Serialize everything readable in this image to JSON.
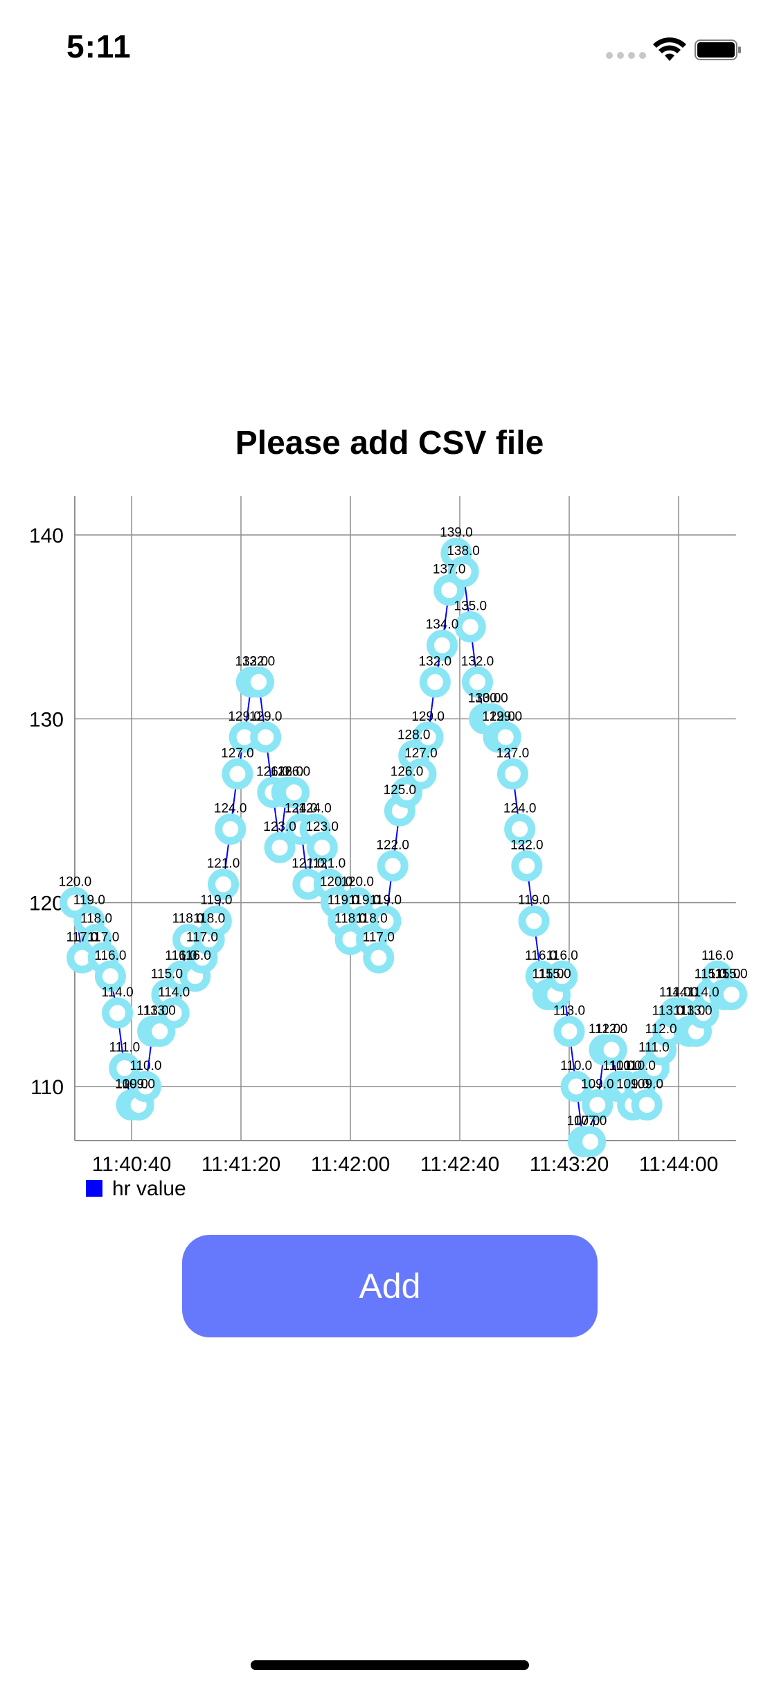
{
  "status_bar": {
    "time": "5:11"
  },
  "page": {
    "title": "Please add CSV file",
    "add_button_label": "Add"
  },
  "colors": {
    "line": "#0000ff",
    "marker": "#8ae6f5",
    "button": "#6679fc",
    "grid": "#8e8e8e"
  },
  "chart_data": {
    "type": "line",
    "title": "",
    "xlabel": "",
    "ylabel": "",
    "ylim": [
      107,
      142
    ],
    "xlim": [
      30,
      217
    ],
    "x_ticks": [
      {
        "x": 46,
        "label": "11:40:40"
      },
      {
        "x": 77,
        "label": "11:41:20"
      },
      {
        "x": 108,
        "label": "11:42:00"
      },
      {
        "x": 139,
        "label": "11:42:40"
      },
      {
        "x": 170,
        "label": "11:43:20"
      },
      {
        "x": 201,
        "label": "11:44:00"
      }
    ],
    "y_ticks": [
      110,
      120,
      130,
      140
    ],
    "grid": true,
    "legend": "bottom-left",
    "series": [
      {
        "name": "hr value",
        "x": [
          30,
          32,
          34,
          36,
          38,
          40,
          42,
          44,
          46,
          48,
          50,
          52,
          54,
          56,
          58,
          60,
          62,
          64,
          66,
          68,
          70,
          72,
          74,
          76,
          78,
          80,
          82,
          84,
          86,
          88,
          90,
          92,
          94,
          96,
          98,
          100,
          102,
          104,
          106,
          108,
          110,
          112,
          114,
          116,
          118,
          120,
          122,
          124,
          126,
          128,
          130,
          132,
          134,
          136,
          138,
          140,
          142,
          144,
          146,
          148,
          150,
          152,
          154,
          156,
          158,
          160,
          162,
          164,
          166,
          168,
          170,
          172,
          174,
          176,
          178,
          180,
          182,
          184,
          186,
          188,
          190,
          192,
          194,
          196,
          198,
          200,
          202,
          204,
          206,
          208,
          210,
          212,
          214,
          216
        ],
        "y": [
          120,
          117,
          119,
          118,
          117,
          116,
          114,
          111,
          109,
          109,
          110,
          113,
          113,
          115,
          114,
          116,
          118,
          116,
          117,
          118,
          119,
          121,
          124,
          127,
          129,
          132,
          132,
          129,
          126,
          123,
          126,
          126,
          124,
          121,
          124,
          123,
          121,
          120,
          119,
          118,
          120,
          119,
          118,
          117,
          119,
          122,
          125,
          126,
          128,
          127,
          129,
          132,
          134,
          137,
          139,
          138,
          135,
          132,
          130,
          130,
          129,
          129,
          127,
          124,
          122,
          119,
          116,
          115,
          115,
          116,
          113,
          110,
          107,
          107,
          109,
          112,
          112,
          110,
          110,
          109,
          110,
          109,
          111,
          112,
          113,
          114,
          114,
          113,
          113,
          114,
          115,
          116,
          115,
          115
        ],
        "labels": [
          "120.0",
          "117.0",
          "119.0",
          "118.0",
          "117.0",
          "116.0",
          "114.0",
          "111.0",
          "109.0",
          "109.0",
          "110.0",
          "113.0",
          "113.0",
          "115.0",
          "114.0",
          "116.0",
          "118.0",
          "116.0",
          "117.0",
          "118.0",
          "119.0",
          "121.0",
          "124.0",
          "127.0",
          "129.0",
          "132.0",
          "132.0",
          "129.0",
          "126.0",
          "123.0",
          "126.0",
          "126.0",
          "124.0",
          "121.0",
          "124.0",
          "123.0",
          "121.0",
          "120.0",
          "119.0",
          "118.0",
          "120.0",
          "119.0",
          "118.0",
          "117.0",
          "119.0",
          "122.0",
          "125.0",
          "126.0",
          "128.0",
          "127.0",
          "129.0",
          "132.0",
          "134.0",
          "137.0",
          "139.0",
          "138.0",
          "135.0",
          "132.0",
          "130.0",
          "130.0",
          "129.0",
          "129.0",
          "127.0",
          "124.0",
          "122.0",
          "119.0",
          "116.0",
          "115.0",
          "115.0",
          "116.0",
          "113.0",
          "110.0",
          "107.0",
          "107.0",
          "109.0",
          "112.0",
          "112.0",
          "110.0",
          "110.0",
          "109.0",
          "110.0",
          "109.0",
          "111.0",
          "112.0",
          "113.0",
          "114.0",
          "114.0",
          "113.0",
          "113.0",
          "114.0",
          "115.0",
          "116.0",
          "115.0",
          "115.0"
        ]
      }
    ]
  }
}
